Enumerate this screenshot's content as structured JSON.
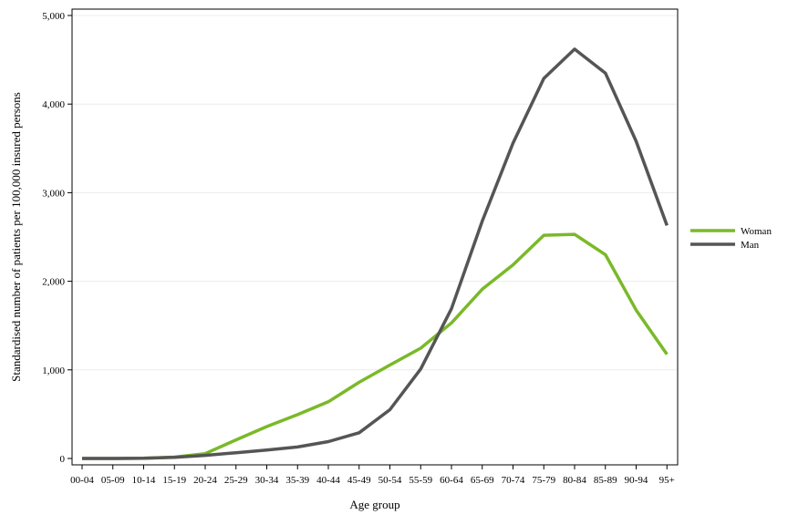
{
  "chart_data": {
    "type": "line",
    "xlabel": "Age group",
    "ylabel": "Standardised number of patients per 100,000 insured persons",
    "categories": [
      "00-04",
      "05-09",
      "10-14",
      "15-19",
      "20-24",
      "25-29",
      "30-34",
      "35-39",
      "40-44",
      "45-49",
      "50-54",
      "55-59",
      "60-64",
      "65-69",
      "70-74",
      "75-79",
      "80-84",
      "85-89",
      "90-94",
      "95+"
    ],
    "ylim": [
      0,
      5000
    ],
    "yticks": [
      0,
      1000,
      2000,
      3000,
      4000,
      5000
    ],
    "ytick_labels": [
      "0",
      "1,000",
      "2,000",
      "3,000",
      "4,000",
      "5,000"
    ],
    "grid": "horizontal",
    "legend": "right",
    "series": [
      {
        "name": "Woman",
        "color": "#7ab929",
        "values": [
          0,
          0,
          2,
          15,
          55,
          210,
          360,
          495,
          640,
          860,
          1055,
          1245,
          1530,
          1910,
          2185,
          2520,
          2530,
          2300,
          1675,
          1175
        ]
      },
      {
        "name": "Man",
        "color": "#555555",
        "values": [
          0,
          0,
          2,
          12,
          35,
          65,
          95,
          130,
          190,
          290,
          550,
          1010,
          1690,
          2680,
          3560,
          4290,
          4620,
          4350,
          3580,
          2630
        ]
      }
    ]
  }
}
